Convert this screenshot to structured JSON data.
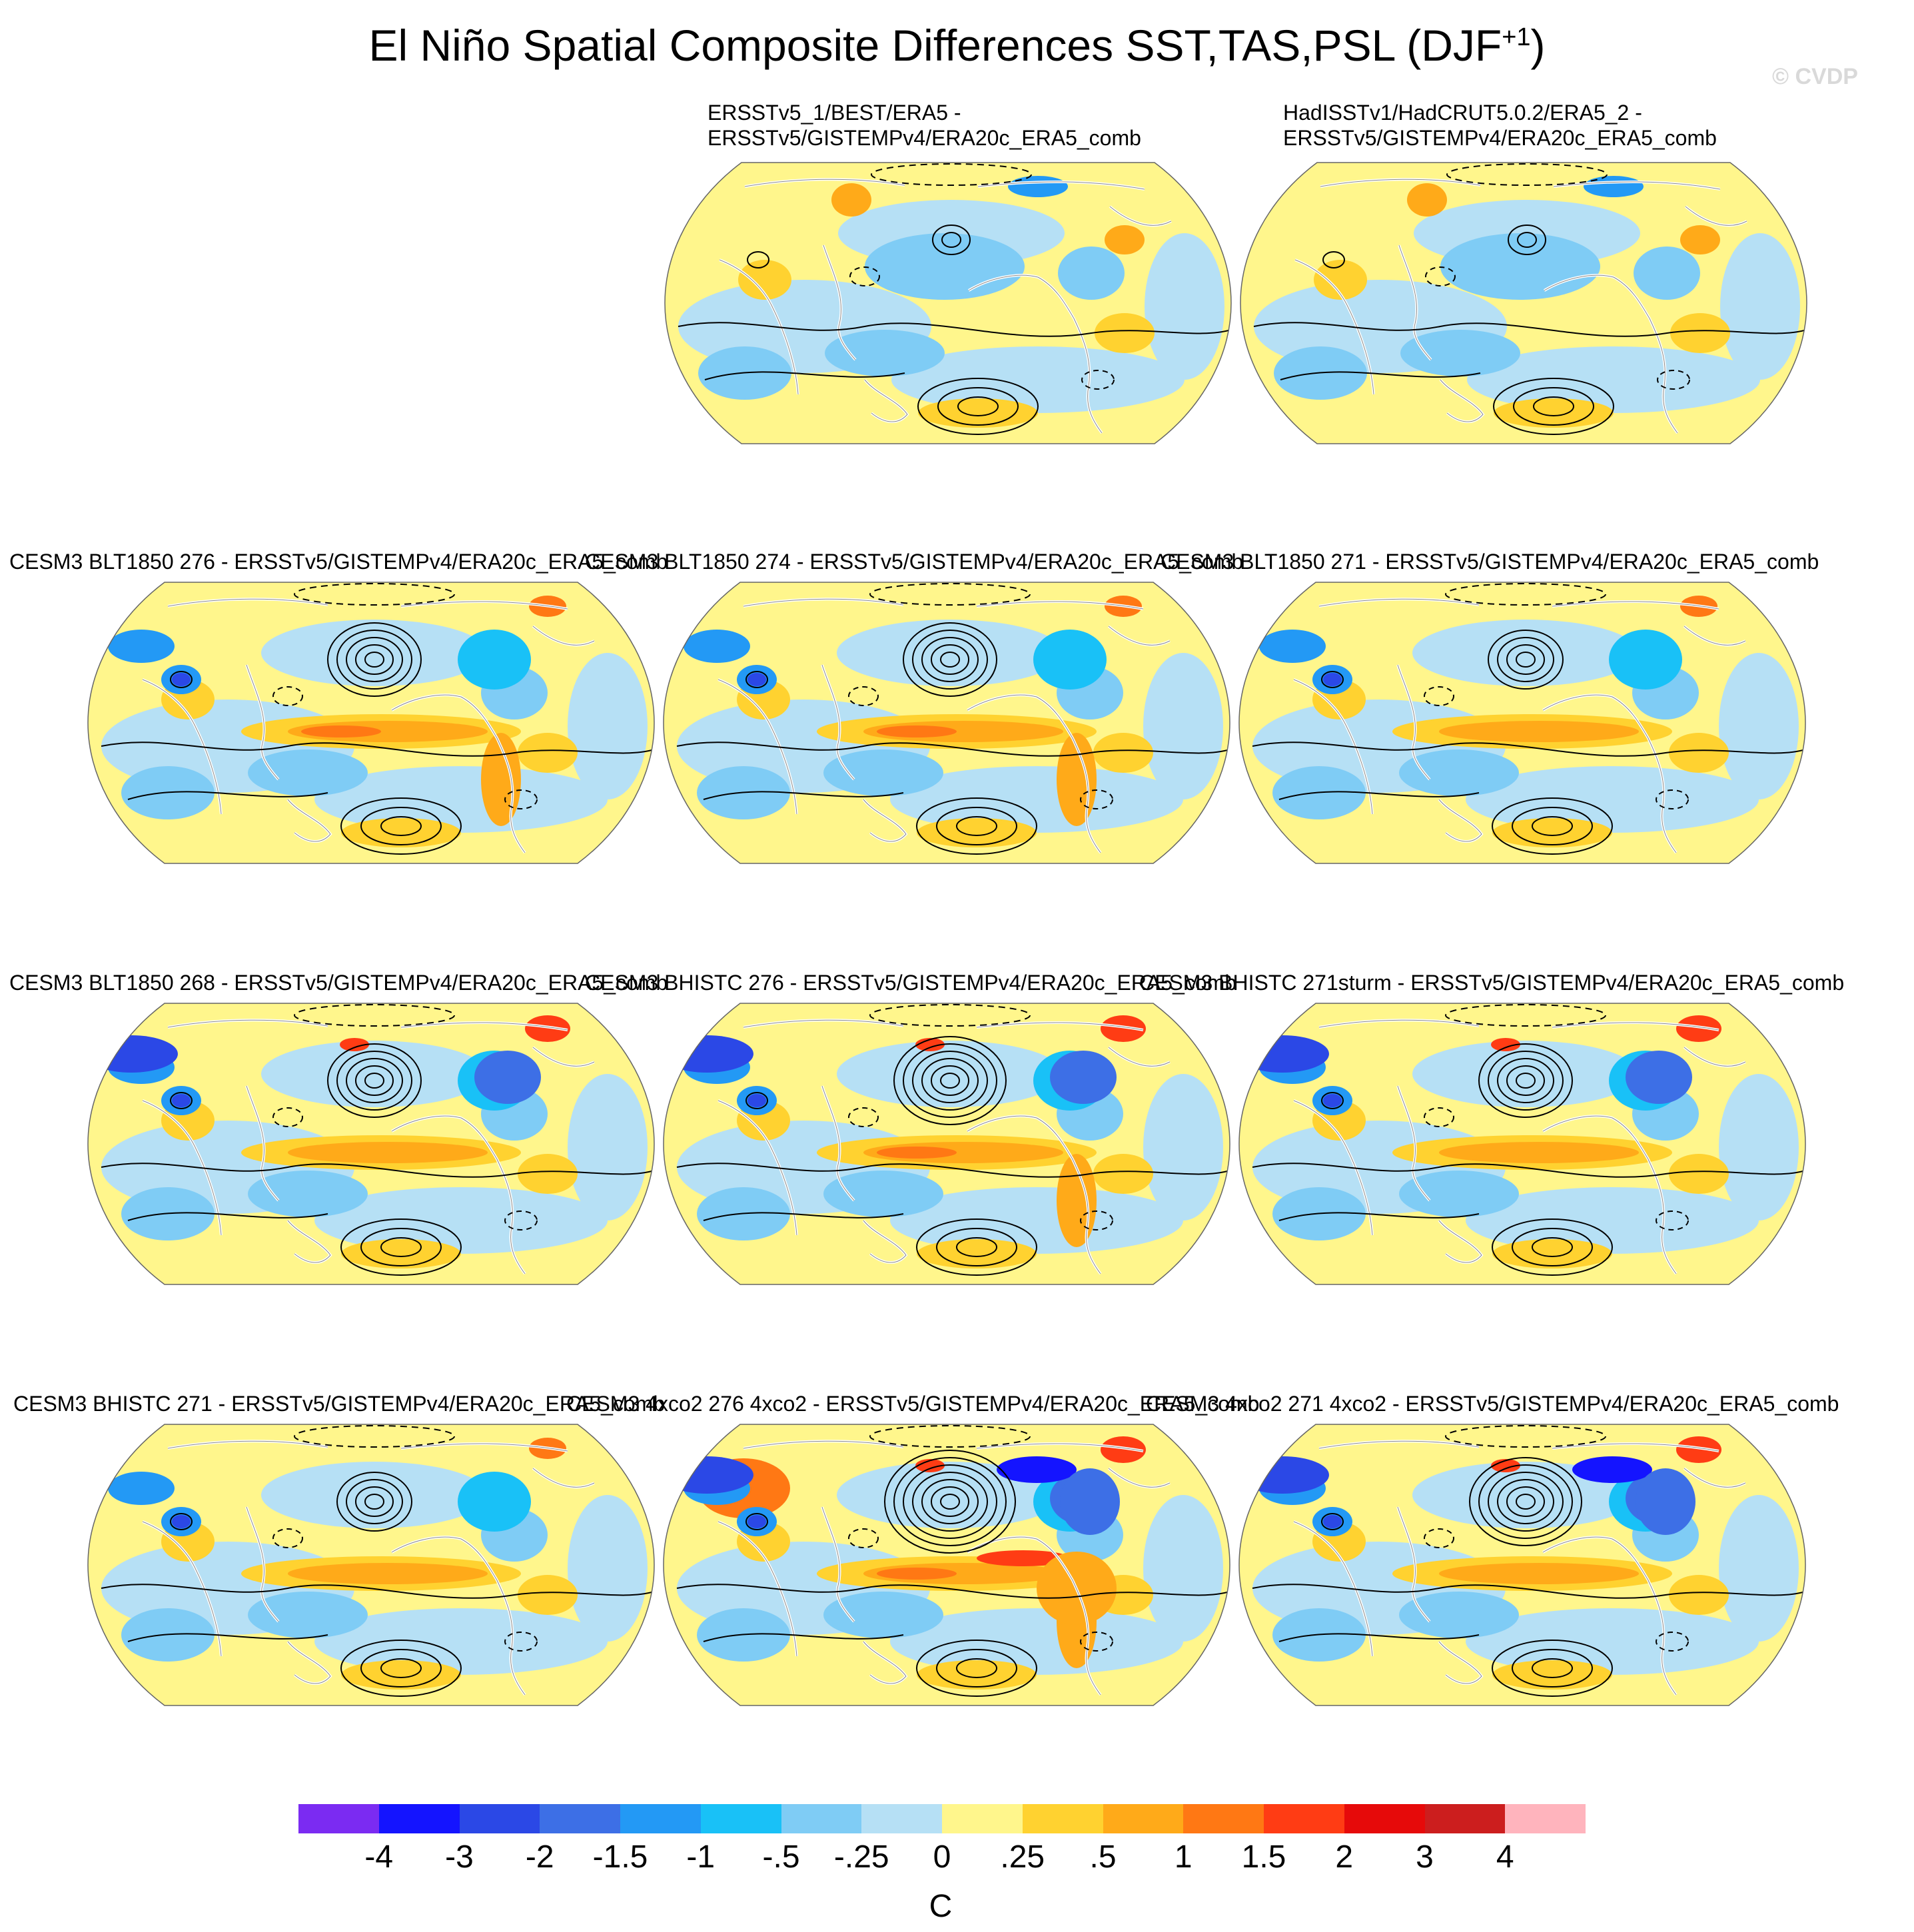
{
  "title": {
    "main": "El Niño Spatial Composite Differences SST,TAS,PSL (DJF",
    "superscript": "+1",
    "close": ")"
  },
  "watermark": "© CVDP",
  "colors": {
    "land_outline": "#ffffff",
    "contour": "#000000"
  },
  "chart_data": {
    "type": "heatmap",
    "projection": "Robinson (global)",
    "variables": [
      "SST",
      "TAS",
      "PSL"
    ],
    "season": "DJF+1",
    "colorbar": {
      "units": "C",
      "levels": [
        "-4",
        "-3",
        "-2",
        "-1.5",
        "-1",
        "-.5",
        "-.25",
        "0",
        ".25",
        ".5",
        "1",
        "1.5",
        "2",
        "3",
        "4"
      ],
      "colors": [
        "#7b2bf2",
        "#1414ff",
        "#2b48e6",
        "#3d6fe6",
        "#2399f5",
        "#19c1f7",
        "#7fccf5",
        "#b6e0f5",
        "#fff68c",
        "#ffd230",
        "#ffaa19",
        "#ff7814",
        "#ff3c14",
        "#e60a0a",
        "#cc1e1e",
        "#ffb4bd"
      ]
    },
    "panels": [
      {
        "id": "p1",
        "title_line1": "ERSSTv5_1/BEST/ERA5 -",
        "title_line2": "ERSSTv5/GISTEMPv4/ERA20c_ERA5_comb",
        "cold_anomaly": 0,
        "el_nino_strength": 0
      },
      {
        "id": "p2",
        "title_line1": "HadISSTv1/HadCRUT5.0.2/ERA5_2 -",
        "title_line2": "ERSSTv5/GISTEMPv4/ERA20c_ERA5_comb",
        "cold_anomaly": 0,
        "el_nino_strength": 0
      },
      {
        "id": "p3",
        "title_line1": "CESM3 BLT1850 276 - ERSSTv5/GISTEMPv4/ERA20c_ERA5_comb",
        "cold_anomaly": 1,
        "el_nino_strength": 2
      },
      {
        "id": "p4",
        "title_line1": "CESM3 BLT1850 274 - ERSSTv5/GISTEMPv4/ERA20c_ERA5_comb",
        "cold_anomaly": 1,
        "el_nino_strength": 2
      },
      {
        "id": "p5",
        "title_line1": "CESM3 BLT1850 271 - ERSSTv5/GISTEMPv4/ERA20c_ERA5_comb",
        "cold_anomaly": 1,
        "el_nino_strength": 1
      },
      {
        "id": "p6",
        "title_line1": "CESM3 BLT1850 268 - ERSSTv5/GISTEMPv4/ERA20c_ERA5_comb",
        "cold_anomaly": 2,
        "el_nino_strength": 1
      },
      {
        "id": "p7",
        "title_line1": "CESM3 BHISTC 276 - ERSSTv5/GISTEMPv4/ERA20c_ERA5_comb",
        "cold_anomaly": 2,
        "el_nino_strength": 2
      },
      {
        "id": "p8",
        "title_line1": "CESM3 BHISTC 271sturm - ERSSTv5/GISTEMPv4/ERA20c_ERA5_comb",
        "cold_anomaly": 2,
        "el_nino_strength": 1
      },
      {
        "id": "p9",
        "title_line1": "CESM3 BHISTC 271 - ERSSTv5/GISTEMPv4/ERA20c_ERA5_comb",
        "cold_anomaly": 1,
        "el_nino_strength": 1
      },
      {
        "id": "p10",
        "title_line1": "CESM3 4xco2 276 4xco2 - ERSSTv5/GISTEMPv4/ERA20c_ERA5_comb",
        "cold_anomaly": 3,
        "el_nino_strength": 3
      },
      {
        "id": "p11",
        "title_line1": "CESM3 4xco2 271 4xco2 - ERSSTv5/GISTEMPv4/ERA20c_ERA5_comb",
        "cold_anomaly": 3,
        "el_nino_strength": 1
      }
    ]
  }
}
